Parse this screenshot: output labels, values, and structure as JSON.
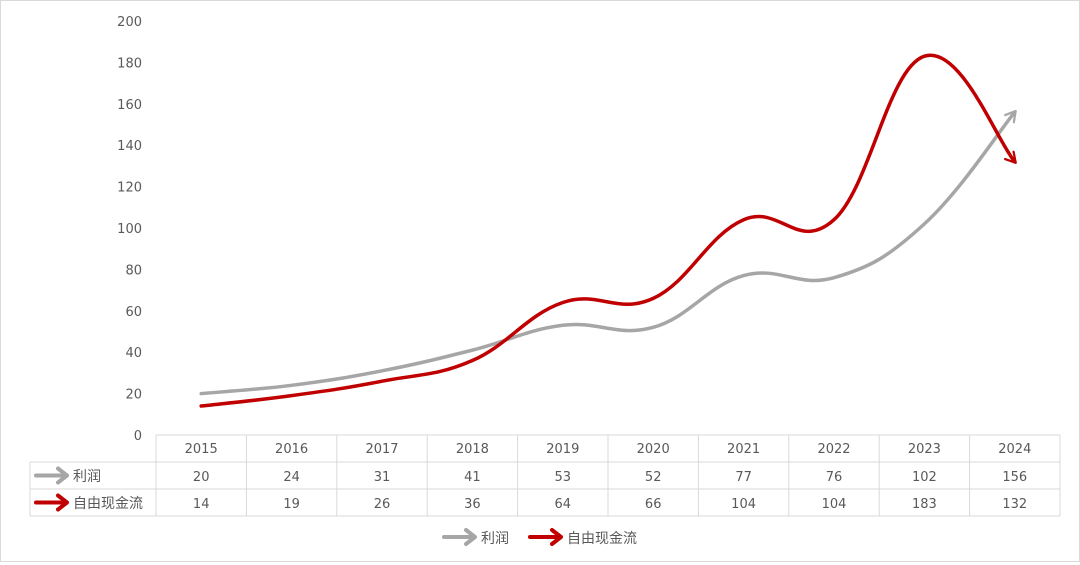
{
  "chart_data": {
    "type": "line",
    "categories": [
      "2015",
      "2016",
      "2017",
      "2018",
      "2019",
      "2020",
      "2021",
      "2022",
      "2023",
      "2024"
    ],
    "series": [
      {
        "name": "利润",
        "color": "#a6a6a6",
        "values": [
          20,
          24,
          31,
          41,
          53,
          52,
          77,
          76,
          102,
          156
        ]
      },
      {
        "name": "自由现金流",
        "color": "#c00000",
        "values": [
          14,
          19,
          26,
          36,
          64,
          66,
          104,
          104,
          183,
          132
        ]
      }
    ],
    "yticks": [
      "0",
      "20",
      "40",
      "60",
      "80",
      "100",
      "120",
      "140",
      "160",
      "180",
      "200"
    ],
    "ylim": [
      0,
      200
    ],
    "legend": "bottom",
    "data_table": true,
    "grid": false
  }
}
